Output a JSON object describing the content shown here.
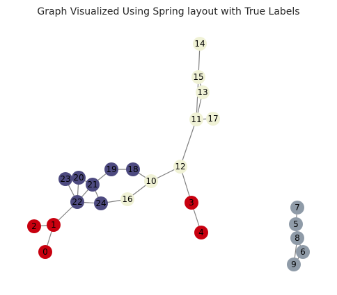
{
  "title": "Graph Visualized Using Spring layout with True Labels",
  "colors": {
    "red": "#c8000f",
    "navy": "#4d4a80",
    "cream": "#f0f2d6",
    "gray": "#8f9ba8"
  },
  "nodes": [
    {
      "id": "0",
      "label": "0",
      "group": "red"
    },
    {
      "id": "1",
      "label": "1",
      "group": "red"
    },
    {
      "id": "2",
      "label": "2",
      "group": "red"
    },
    {
      "id": "3",
      "label": "3",
      "group": "red"
    },
    {
      "id": "4",
      "label": "4",
      "group": "red"
    },
    {
      "id": "5",
      "label": "5",
      "group": "gray"
    },
    {
      "id": "6",
      "label": "6",
      "group": "gray"
    },
    {
      "id": "7",
      "label": "7",
      "group": "gray"
    },
    {
      "id": "8",
      "label": "8",
      "group": "gray"
    },
    {
      "id": "9",
      "label": "9",
      "group": "gray"
    },
    {
      "id": "10",
      "label": "10",
      "group": "cream"
    },
    {
      "id": "11",
      "label": "11",
      "group": "cream"
    },
    {
      "id": "12",
      "label": "12",
      "group": "cream"
    },
    {
      "id": "13",
      "label": "13",
      "group": "cream"
    },
    {
      "id": "14",
      "label": "14",
      "group": "cream"
    },
    {
      "id": "15",
      "label": "15",
      "group": "cream"
    },
    {
      "id": "16",
      "label": "16",
      "group": "cream"
    },
    {
      "id": "17",
      "label": "17",
      "group": "cream"
    },
    {
      "id": "18",
      "label": "18",
      "group": "navy"
    },
    {
      "id": "19",
      "label": "19",
      "group": "navy"
    },
    {
      "id": "20",
      "label": "20",
      "group": "navy"
    },
    {
      "id": "21",
      "label": "21",
      "group": "navy"
    },
    {
      "id": "22",
      "label": "22",
      "group": "navy"
    },
    {
      "id": "23",
      "label": "23",
      "group": "navy"
    },
    {
      "id": "24",
      "label": "24",
      "group": "navy"
    }
  ],
  "edges": [
    [
      "14",
      "15"
    ],
    [
      "15",
      "13"
    ],
    [
      "15",
      "11"
    ],
    [
      "13",
      "11"
    ],
    [
      "11",
      "17"
    ],
    [
      "11",
      "12"
    ],
    [
      "12",
      "10"
    ],
    [
      "12",
      "3"
    ],
    [
      "3",
      "4"
    ],
    [
      "10",
      "18"
    ],
    [
      "10",
      "16"
    ],
    [
      "18",
      "19"
    ],
    [
      "19",
      "21"
    ],
    [
      "21",
      "20"
    ],
    [
      "21",
      "22"
    ],
    [
      "21",
      "24"
    ],
    [
      "20",
      "23"
    ],
    [
      "20",
      "22"
    ],
    [
      "23",
      "22"
    ],
    [
      "22",
      "24"
    ],
    [
      "24",
      "16"
    ],
    [
      "22",
      "1"
    ],
    [
      "1",
      "2"
    ],
    [
      "1",
      "0"
    ],
    [
      "7",
      "5"
    ],
    [
      "5",
      "8"
    ],
    [
      "8",
      "6"
    ],
    [
      "8",
      "9"
    ],
    [
      "6",
      "9"
    ]
  ]
}
